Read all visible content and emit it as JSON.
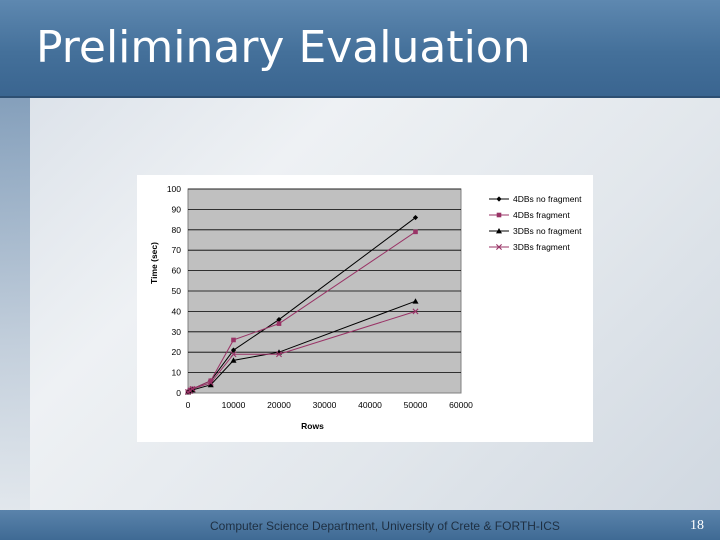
{
  "slide": {
    "title": "Preliminary Evaluation",
    "footer": "Computer Science Department, University of Crete & FORTH-ICS",
    "page_number": "18"
  },
  "colors": {
    "title_bar": "#44709a",
    "plot_area": "#c0c0c0",
    "series_dark": "#000000",
    "series_magenta": "#993366"
  },
  "chart_data": {
    "type": "line",
    "title": "",
    "xlabel": "Rows",
    "ylabel": "Time (sec)",
    "xlim": [
      0,
      60000
    ],
    "ylim": [
      0,
      100
    ],
    "x_ticks": [
      0,
      10000,
      20000,
      30000,
      40000,
      50000,
      60000
    ],
    "y_ticks": [
      0,
      10,
      20,
      30,
      40,
      50,
      60,
      70,
      80,
      90,
      100
    ],
    "grid": "horizontal",
    "legend_position": "top-right",
    "series": [
      {
        "name": "4DBs no fragment",
        "marker": "diamond",
        "color": "#000000",
        "x": [
          0,
          500,
          1000,
          5000,
          10000,
          20000,
          50000
        ],
        "y": [
          0.5,
          1,
          2,
          6,
          21,
          36,
          86
        ]
      },
      {
        "name": "4DBs fragment",
        "marker": "square",
        "color": "#993366",
        "x": [
          0,
          500,
          1000,
          5000,
          10000,
          20000,
          50000
        ],
        "y": [
          0.5,
          1.5,
          2,
          6,
          26,
          34,
          79
        ]
      },
      {
        "name": "3DBs no fragment",
        "marker": "triangle",
        "color": "#000000",
        "x": [
          0,
          500,
          1000,
          5000,
          10000,
          20000,
          50000
        ],
        "y": [
          0.5,
          1,
          1.5,
          4,
          16,
          20,
          45
        ]
      },
      {
        "name": "3DBs fragment",
        "marker": "x",
        "color": "#993366",
        "x": [
          0,
          500,
          1000,
          5000,
          10000,
          20000,
          50000
        ],
        "y": [
          0.5,
          1,
          2,
          5,
          19,
          19,
          40
        ]
      }
    ]
  }
}
